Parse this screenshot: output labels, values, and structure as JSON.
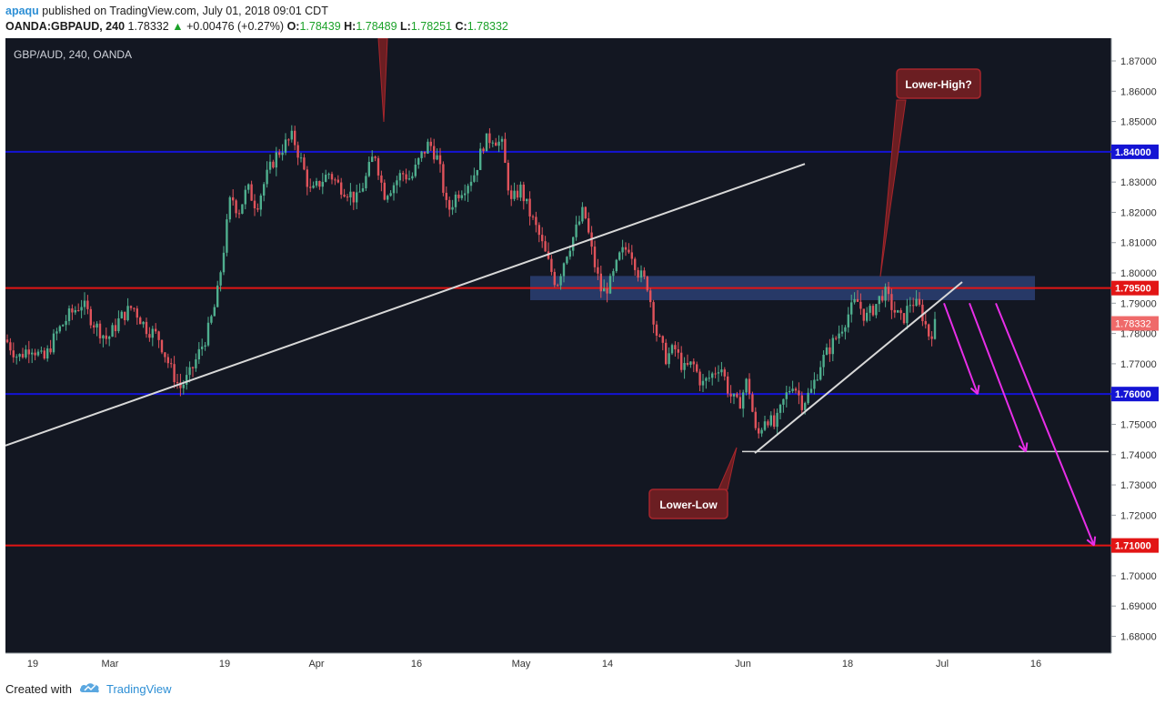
{
  "header": {
    "user": "apaqu",
    "published": "published on TradingView.com, July 01, 2018 09:01 CDT",
    "symbol": "OANDA:GBPAUD, 240",
    "price": "1.78332",
    "change": "+0.00476 (+0.27%)",
    "o_label": "O:",
    "o": "1.78439",
    "h_label": "H:",
    "h": "1.78489",
    "l_label": "L:",
    "l": "1.78251",
    "c_label": "C:",
    "c": "1.78332"
  },
  "footer": {
    "created_with": "Created with",
    "brand": "TradingView",
    "logo_icon": "tradingview-cloud-icon"
  },
  "chart_data": {
    "type": "candlestick",
    "title": "GBP/AUD, 240, OANDA",
    "ylim": [
      1.675,
      1.877
    ],
    "y_ticks": [
      "1.87000",
      "1.86000",
      "1.85000",
      "1.84000",
      "1.83000",
      "1.82000",
      "1.81000",
      "1.80000",
      "1.79000",
      "1.78000",
      "1.77000",
      "1.76000",
      "1.75000",
      "1.74000",
      "1.73000",
      "1.72000",
      "1.71000",
      "1.70000",
      "1.69000",
      "1.68000"
    ],
    "x_ticks": [
      "19",
      "Mar",
      "19",
      "Apr",
      "16",
      "May",
      "14",
      "Jun",
      "18",
      "Jul",
      "16"
    ],
    "current_price": "1.78332",
    "levels": [
      {
        "value": 1.84,
        "label": "1.84000",
        "color": "#1414d4"
      },
      {
        "value": 1.795,
        "label": "1.79500",
        "color": "#e21515"
      },
      {
        "value": 1.76,
        "label": "1.76000",
        "color": "#1414d4"
      },
      {
        "value": 1.71,
        "label": "1.71000",
        "color": "#e21515"
      }
    ],
    "support_line": 1.741,
    "resistance_zone": [
      1.791,
      1.799
    ],
    "annotations": [
      "Lower-High?",
      "Lower-Low"
    ],
    "price_path": [
      [
        0,
        1.778
      ],
      [
        14,
        1.772
      ],
      [
        28,
        1.776
      ],
      [
        42,
        1.771
      ],
      [
        56,
        1.78
      ],
      [
        70,
        1.786
      ],
      [
        84,
        1.79
      ],
      [
        98,
        1.783
      ],
      [
        112,
        1.778
      ],
      [
        126,
        1.785
      ],
      [
        140,
        1.789
      ],
      [
        154,
        1.782
      ],
      [
        168,
        1.779
      ],
      [
        182,
        1.768
      ],
      [
        192,
        1.762
      ],
      [
        202,
        1.766
      ],
      [
        212,
        1.773
      ],
      [
        222,
        1.78
      ],
      [
        232,
        1.791
      ],
      [
        240,
        1.808
      ],
      [
        248,
        1.826
      ],
      [
        256,
        1.82
      ],
      [
        266,
        1.828
      ],
      [
        276,
        1.822
      ],
      [
        286,
        1.831
      ],
      [
        296,
        1.838
      ],
      [
        306,
        1.842
      ],
      [
        316,
        1.845
      ],
      [
        326,
        1.836
      ],
      [
        336,
        1.826
      ],
      [
        346,
        1.83
      ],
      [
        356,
        1.833
      ],
      [
        366,
        1.829
      ],
      [
        376,
        1.827
      ],
      [
        386,
        1.824
      ],
      [
        396,
        1.831
      ],
      [
        406,
        1.84
      ],
      [
        416,
        1.826
      ],
      [
        426,
        1.829
      ],
      [
        436,
        1.833
      ],
      [
        446,
        1.831
      ],
      [
        456,
        1.838
      ],
      [
        466,
        1.843
      ],
      [
        476,
        1.837
      ],
      [
        486,
        1.82
      ],
      [
        496,
        1.826
      ],
      [
        506,
        1.829
      ],
      [
        516,
        1.833
      ],
      [
        526,
        1.843
      ],
      [
        536,
        1.845
      ],
      [
        546,
        1.842
      ],
      [
        556,
        1.823
      ],
      [
        566,
        1.828
      ],
      [
        576,
        1.82
      ],
      [
        586,
        1.813
      ],
      [
        596,
        1.804
      ],
      [
        606,
        1.796
      ],
      [
        616,
        1.806
      ],
      [
        626,
        1.813
      ],
      [
        636,
        1.821
      ],
      [
        646,
        1.805
      ],
      [
        656,
        1.793
      ],
      [
        666,
        1.797
      ],
      [
        676,
        1.806
      ],
      [
        686,
        1.809
      ],
      [
        696,
        1.8
      ],
      [
        706,
        1.796
      ],
      [
        716,
        1.78
      ],
      [
        726,
        1.772
      ],
      [
        736,
        1.775
      ],
      [
        746,
        1.768
      ],
      [
        756,
        1.77
      ],
      [
        766,
        1.763
      ],
      [
        776,
        1.766
      ],
      [
        786,
        1.77
      ],
      [
        796,
        1.76
      ],
      [
        806,
        1.756
      ],
      [
        816,
        1.765
      ],
      [
        826,
        1.745
      ],
      [
        836,
        1.753
      ],
      [
        846,
        1.749
      ],
      [
        856,
        1.758
      ],
      [
        866,
        1.764
      ],
      [
        876,
        1.757
      ],
      [
        886,
        1.761
      ],
      [
        896,
        1.77
      ],
      [
        906,
        1.775
      ],
      [
        916,
        1.78
      ],
      [
        926,
        1.786
      ],
      [
        936,
        1.791
      ],
      [
        946,
        1.785
      ],
      [
        956,
        1.789
      ],
      [
        966,
        1.794
      ],
      [
        976,
        1.788
      ],
      [
        986,
        1.784
      ],
      [
        996,
        1.791
      ],
      [
        1006,
        1.788
      ],
      [
        1016,
        1.779
      ],
      [
        1024,
        1.784
      ]
    ]
  }
}
